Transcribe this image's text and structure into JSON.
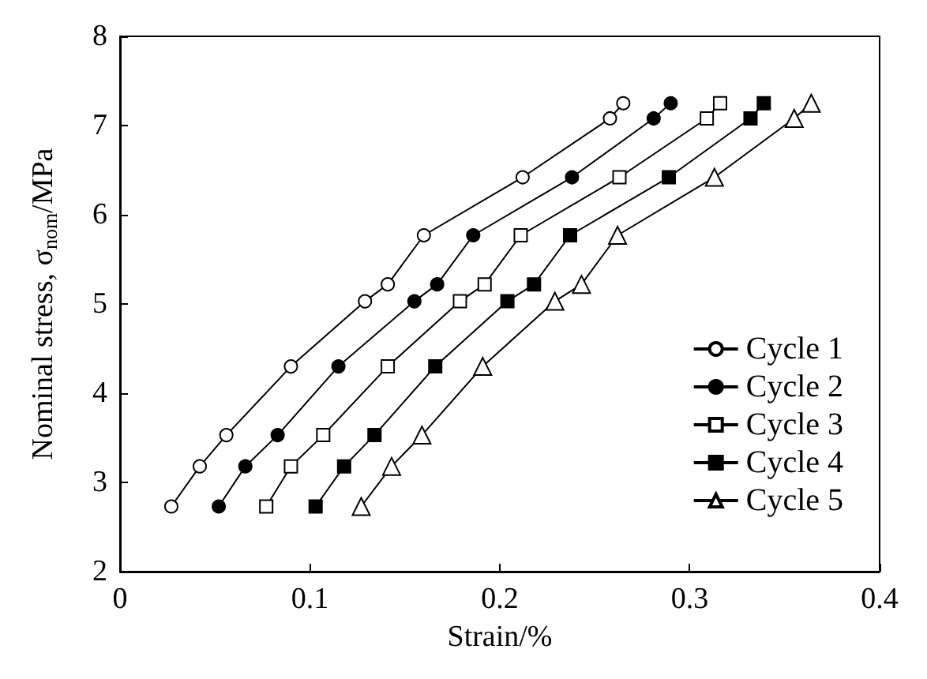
{
  "chart_data": {
    "type": "line",
    "xlabel": "Strain/%",
    "ylabel": "Nominal stress, σ$_{nom}$/MPa",
    "xlim": [
      0,
      0.4
    ],
    "xticks": [
      0,
      0.1,
      0.2,
      0.3,
      0.4
    ],
    "ylim": [
      2,
      8
    ],
    "yticks": [
      2,
      3,
      4,
      5,
      6,
      7,
      8
    ],
    "grid": false,
    "legend": "bottom right",
    "line_style": "solid",
    "series": [
      {
        "name": "Cycle 1",
        "color": "#000000",
        "marker": "circle",
        "x": [
          0.027,
          0.042,
          0.056,
          0.09,
          0.129,
          0.141,
          0.16,
          0.212,
          0.258,
          0.265
        ],
        "values": [
          2.73,
          3.18,
          3.53,
          4.3,
          5.03,
          5.22,
          5.77,
          6.42,
          7.08,
          7.25
        ]
      },
      {
        "name": "Cycle 2",
        "color": "#000000",
        "marker": "circle",
        "x": [
          0.052,
          0.066,
          0.083,
          0.115,
          0.155,
          0.167,
          0.186,
          0.238,
          0.281,
          0.29
        ],
        "values": [
          2.73,
          3.18,
          3.53,
          4.3,
          5.03,
          5.22,
          5.77,
          6.42,
          7.08,
          7.25
        ]
      },
      {
        "name": "Cycle 3",
        "color": "#000000",
        "marker": "square",
        "x": [
          0.077,
          0.09,
          0.107,
          0.141,
          0.179,
          0.192,
          0.211,
          0.263,
          0.309,
          0.316
        ],
        "values": [
          2.73,
          3.18,
          3.53,
          4.3,
          5.03,
          5.22,
          5.77,
          6.42,
          7.08,
          7.25
        ]
      },
      {
        "name": "Cycle 4",
        "color": "#000000",
        "marker": "square",
        "x": [
          0.103,
          0.118,
          0.134,
          0.166,
          0.204,
          0.218,
          0.237,
          0.289,
          0.332,
          0.339
        ],
        "values": [
          2.73,
          3.18,
          3.53,
          4.3,
          5.03,
          5.22,
          5.77,
          6.42,
          7.08,
          7.25
        ]
      },
      {
        "name": "Cycle 5",
        "color": "#000000",
        "marker": "triangle",
        "x": [
          0.127,
          0.143,
          0.159,
          0.191,
          0.229,
          0.243,
          0.262,
          0.313,
          0.355,
          0.364
        ],
        "values": [
          2.73,
          3.18,
          3.53,
          4.3,
          5.03,
          5.22,
          5.77,
          6.42,
          7.08,
          7.25
        ]
      }
    ]
  }
}
